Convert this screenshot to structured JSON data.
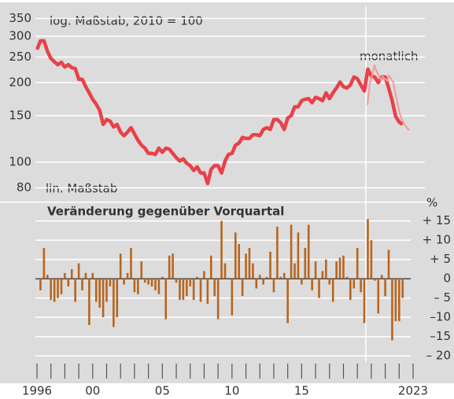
{
  "chart_data": [
    {
      "type": "line",
      "log_scale": true,
      "grid": true,
      "scale_note": "log. Maßstab, 2010 = 100",
      "annotation": "monatlich",
      "xlim": [
        1996,
        2023
      ],
      "ylim": [
        75,
        380
      ],
      "yticks": [
        80,
        100,
        150,
        200,
        250,
        300,
        350
      ],
      "series": [
        {
          "color": "#e8414a",
          "x": [
            1996,
            1996.25,
            1996.5,
            1996.75,
            1997,
            1997.25,
            1997.5,
            1997.75,
            1998,
            1998.25,
            1998.5,
            1998.75,
            1999,
            1999.25,
            1999.5,
            1999.75,
            2000,
            2000.25,
            2000.5,
            2000.75,
            2001,
            2001.25,
            2001.5,
            2001.75,
            2002,
            2002.25,
            2002.5,
            2002.75,
            2003,
            2003.25,
            2003.5,
            2003.75,
            2004,
            2004.25,
            2004.5,
            2004.75,
            2005,
            2005.25,
            2005.5,
            2005.75,
            2006,
            2006.25,
            2006.5,
            2006.75,
            2007,
            2007.25,
            2007.5,
            2007.75,
            2008,
            2008.25,
            2008.5,
            2008.75,
            2009,
            2009.25,
            2009.5,
            2009.75,
            2010,
            2010.25,
            2010.5,
            2010.75,
            2011,
            2011.25,
            2011.5,
            2011.75,
            2012,
            2012.25,
            2012.5,
            2012.75,
            2013,
            2013.25,
            2013.5,
            2013.75,
            2014,
            2014.25,
            2014.5,
            2014.75,
            2015,
            2015.25,
            2015.5,
            2015.75,
            2016,
            2016.25,
            2016.5,
            2016.75,
            2017,
            2017.25,
            2017.5,
            2017.75,
            2018,
            2018.25,
            2018.5,
            2018.75,
            2019,
            2019.25,
            2019.5,
            2019.75,
            2020,
            2020.25,
            2020.5,
            2020.75,
            2021,
            2021.25,
            2021.5,
            2021.75,
            2022,
            2022.25
          ],
          "values": [
            267,
            288,
            288,
            263,
            247,
            240,
            234,
            239,
            229,
            234,
            228,
            226,
            206,
            206,
            193,
            183,
            173,
            166,
            157,
            139,
            145,
            143,
            136,
            139,
            130,
            126,
            130,
            135,
            128,
            121,
            116,
            113,
            108,
            108,
            107,
            113,
            109,
            113,
            112,
            108,
            104,
            101,
            103,
            99,
            97,
            93,
            96,
            91,
            91,
            83,
            94,
            97,
            97,
            91,
            101,
            107,
            108,
            116,
            118,
            124,
            123,
            123,
            127,
            127,
            126,
            133,
            135,
            133,
            145,
            145,
            141,
            133,
            147,
            150,
            162,
            162,
            171,
            173,
            174,
            168,
            176,
            174,
            171,
            183,
            174,
            183,
            191,
            201,
            193,
            191,
            196,
            210,
            207,
            196,
            186,
            225,
            212,
            210,
            200,
            210,
            210,
            191,
            171,
            149,
            142,
            139
          ]
        },
        {
          "color": "#f29a9a",
          "x": [
            2019.73,
            2019.9,
            2020.07,
            2020.24,
            2020.35,
            2020.52,
            2020.69,
            2020.8,
            2020.97,
            2021.14,
            2021.25,
            2021.42,
            2021.59,
            2021.71,
            2021.88,
            2022.05,
            2022.21,
            2022.38,
            2022.55,
            2022.72
          ],
          "values": [
            165,
            200,
            214,
            233,
            222,
            214,
            204,
            211,
            207,
            203,
            213,
            207,
            200,
            183,
            168,
            152,
            144,
            139,
            135,
            132
          ]
        }
      ]
    },
    {
      "type": "bar",
      "title": "Veränderung gegenüber Vorquartal",
      "scale_note": "lin. Maßstab",
      "unit": "%",
      "color": "#b8651e",
      "grid": true,
      "xlim": [
        1996,
        2023
      ],
      "xticks": [
        1996,
        {
          "value": 2000,
          "label": "00"
        },
        {
          "value": 2005,
          "label": "05"
        },
        {
          "value": 2010,
          "label": "10"
        },
        {
          "value": 2015,
          "label": "15"
        },
        2023
      ],
      "xminor": [
        1997,
        1998,
        1999,
        2001,
        2002,
        2003,
        2004,
        2006,
        2007,
        2008,
        2009,
        2011,
        2012,
        2013,
        2014,
        2016,
        2017,
        2018,
        2019,
        2020,
        2021,
        2022
      ],
      "ylim": [
        -22,
        18
      ],
      "yticks": [
        {
          "value": -20,
          "label": "– 20"
        },
        {
          "value": -15,
          "label": "–15"
        },
        {
          "value": -10,
          "label": "–10"
        },
        {
          "value": -5,
          "label": "–  5"
        },
        0,
        {
          "value": 5,
          "label": "+  5"
        },
        {
          "value": 10,
          "label": "+ 10"
        },
        {
          "value": 15,
          "label": "+ 15"
        }
      ],
      "x": [
        1996.25,
        1996.5,
        1996.75,
        1997,
        1997.25,
        1997.5,
        1997.75,
        1998,
        1998.25,
        1998.5,
        1998.75,
        1999,
        1999.25,
        1999.5,
        1999.75,
        2000,
        2000.25,
        2000.5,
        2000.75,
        2001,
        2001.25,
        2001.5,
        2001.75,
        2002,
        2002.25,
        2002.5,
        2002.75,
        2003,
        2003.25,
        2003.5,
        2003.75,
        2004,
        2004.25,
        2004.5,
        2004.75,
        2005,
        2005.25,
        2005.5,
        2005.75,
        2006,
        2006.25,
        2006.5,
        2006.75,
        2007,
        2007.25,
        2007.5,
        2007.75,
        2008,
        2008.25,
        2008.5,
        2008.75,
        2009,
        2009.25,
        2009.5,
        2009.75,
        2010,
        2010.25,
        2010.5,
        2010.75,
        2011,
        2011.25,
        2011.5,
        2011.75,
        2012,
        2012.25,
        2012.5,
        2012.75,
        2013,
        2013.25,
        2013.5,
        2013.75,
        2014,
        2014.25,
        2014.5,
        2014.75,
        2015,
        2015.25,
        2015.5,
        2015.75,
        2016,
        2016.25,
        2016.5,
        2016.75,
        2017,
        2017.25,
        2017.5,
        2017.75,
        2018,
        2018.25,
        2018.5,
        2018.75,
        2019,
        2019.25,
        2019.5,
        2019.75,
        2020,
        2020.25,
        2020.5,
        2020.75,
        2021,
        2021.25,
        2021.5,
        2021.75,
        2022,
        2022.25
      ],
      "values": [
        -3,
        8,
        1,
        -5.5,
        -6,
        -5,
        -4,
        1.5,
        -2,
        2.5,
        -6,
        4,
        -3,
        1.5,
        -12,
        1.5,
        -6,
        -7.5,
        -10,
        -6,
        -2,
        -12.5,
        -10,
        6.5,
        -1.5,
        1.5,
        8,
        -3.5,
        -4,
        4.5,
        -1,
        -1.5,
        -2,
        -3,
        -4,
        0.5,
        -10.5,
        6,
        6.5,
        -1,
        -5.5,
        -5.5,
        -4.5,
        -2,
        -5.5,
        0.5,
        -6,
        2,
        -6.5,
        6,
        -4.5,
        -10.5,
        15,
        4,
        0,
        -9.5,
        12,
        9,
        -4.5,
        6.5,
        8,
        4,
        -2.5,
        1,
        -1.5,
        0.5,
        7,
        -3.5,
        13.5,
        0.5,
        1.5,
        -11.5,
        14,
        4,
        12,
        -1.5,
        8,
        14,
        -3,
        4.5,
        -5,
        2,
        5,
        -1.5,
        -6,
        4.5,
        5.5,
        6,
        0.5,
        -5.5,
        -2.5,
        8,
        -3.5,
        -11.5,
        15.5,
        10,
        -0.5,
        -9,
        1,
        -4.5,
        7.5,
        -16,
        -11,
        -11,
        -5
      ]
    }
  ]
}
